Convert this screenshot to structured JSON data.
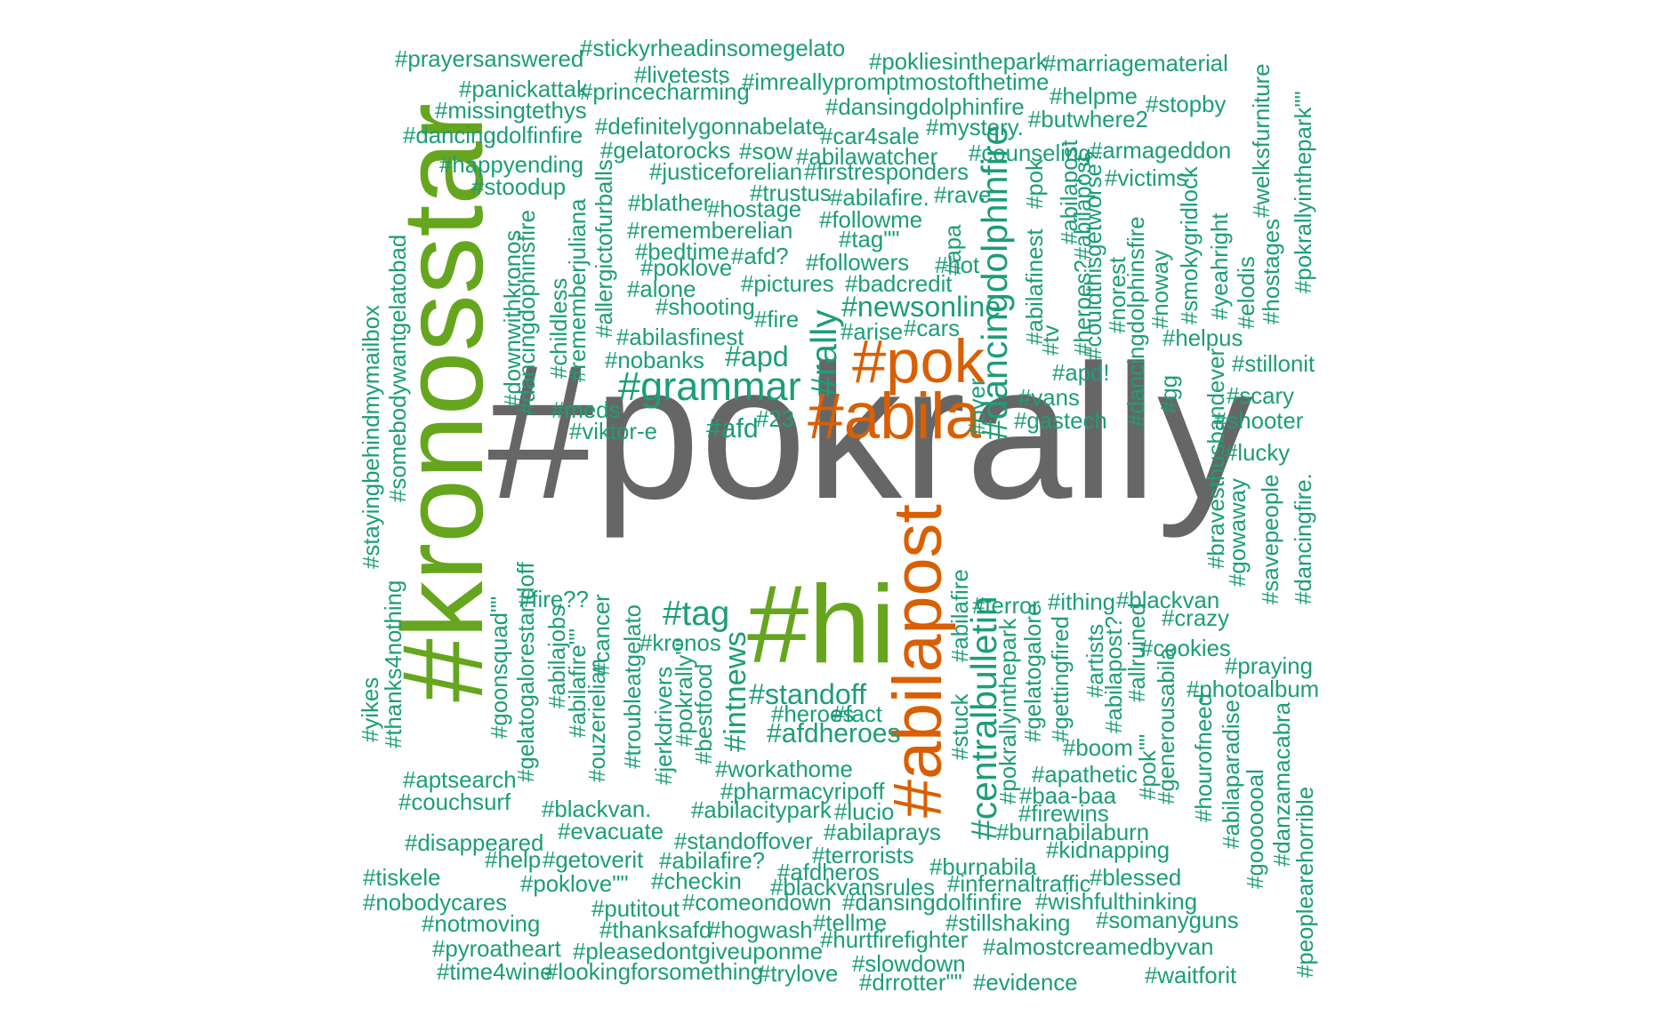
{
  "chart_data": {
    "type": "wordcloud",
    "palette": {
      "grey": "#666666",
      "green": "#66a61e",
      "orange": "#d95f02",
      "teal": "#1b9e77"
    },
    "words": [
      {
        "text": "#pokrally",
        "weight": 100,
        "color": "grey"
      },
      {
        "text": "#kronosstar",
        "weight": 60,
        "color": "green"
      },
      {
        "text": "#hi",
        "weight": 58,
        "color": "green"
      },
      {
        "text": "#abilapost",
        "weight": 36,
        "color": "orange"
      },
      {
        "text": "#abila",
        "weight": 34,
        "color": "orange"
      },
      {
        "text": "#pok",
        "weight": 32,
        "color": "orange"
      },
      {
        "text": "#grammar",
        "weight": 21,
        "color": "teal"
      },
      {
        "text": "#dancingdolphinfire",
        "weight": 19,
        "color": "teal"
      },
      {
        "text": "#centralbulletin",
        "weight": 19,
        "color": "teal"
      },
      {
        "text": "#rally",
        "weight": 19,
        "color": "teal"
      },
      {
        "text": "#tag",
        "weight": 18,
        "color": "teal"
      },
      {
        "text": "#intnews",
        "weight": 16,
        "color": "teal"
      },
      {
        "text": "#standoff",
        "weight": 15,
        "color": "teal"
      },
      {
        "text": "#newsonline",
        "weight": 15,
        "color": "teal"
      },
      {
        "text": "#apd",
        "weight": 15,
        "color": "teal"
      },
      {
        "text": "#afdheroes",
        "weight": 14,
        "color": "teal"
      },
      {
        "text": "#afd",
        "weight": 14,
        "color": "teal"
      },
      {
        "text": "#prayersanswered",
        "weight": 12,
        "color": "teal"
      },
      {
        "text": "#stickyrheadinsomegelato",
        "weight": 12,
        "color": "teal"
      },
      {
        "text": "#pokliesinthepark",
        "weight": 12,
        "color": "teal"
      },
      {
        "text": "#marriagematerial",
        "weight": 12,
        "color": "teal"
      },
      {
        "text": "#livetests",
        "weight": 12,
        "color": "teal"
      },
      {
        "text": "#panickattak",
        "weight": 12,
        "color": "teal"
      },
      {
        "text": "#princecharming",
        "weight": 12,
        "color": "teal"
      },
      {
        "text": "#imreallypromptmostofthetime",
        "weight": 12,
        "color": "teal"
      },
      {
        "text": "#helpme",
        "weight": 12,
        "color": "teal"
      },
      {
        "text": "#missingtethys",
        "weight": 12,
        "color": "teal"
      },
      {
        "text": "#dansingdolphinfire",
        "weight": 12,
        "color": "teal"
      },
      {
        "text": "#stopby",
        "weight": 12,
        "color": "teal"
      },
      {
        "text": "#butwhere2",
        "weight": 12,
        "color": "teal"
      },
      {
        "text": "#definitelygonnabelate",
        "weight": 12,
        "color": "teal"
      },
      {
        "text": "#mystery.",
        "weight": 12,
        "color": "teal"
      },
      {
        "text": "#dancingdolfinfire",
        "weight": 12,
        "color": "teal"
      },
      {
        "text": "#car4sale",
        "weight": 12,
        "color": "teal"
      },
      {
        "text": "#gelatorocks",
        "weight": 12,
        "color": "teal"
      },
      {
        "text": "#sow",
        "weight": 12,
        "color": "teal"
      },
      {
        "text": "#abilawatcher",
        "weight": 12,
        "color": "teal"
      },
      {
        "text": "#counseling",
        "weight": 12,
        "color": "teal"
      },
      {
        "text": "#armageddon",
        "weight": 12,
        "color": "teal"
      },
      {
        "text": "#happyending",
        "weight": 12,
        "color": "teal"
      },
      {
        "text": "#justiceforelian",
        "weight": 12,
        "color": "teal"
      },
      {
        "text": "#firstresponders",
        "weight": 12,
        "color": "teal"
      },
      {
        "text": "#victims",
        "weight": 12,
        "color": "teal"
      },
      {
        "text": "#stoodup",
        "weight": 12,
        "color": "teal"
      },
      {
        "text": "#trustus",
        "weight": 12,
        "color": "teal"
      },
      {
        "text": "#abilafire.",
        "weight": 12,
        "color": "teal"
      },
      {
        "text": "#rave",
        "weight": 12,
        "color": "teal"
      },
      {
        "text": "#blather",
        "weight": 12,
        "color": "teal"
      },
      {
        "text": "#hostage",
        "weight": 12,
        "color": "teal"
      },
      {
        "text": "#followme",
        "weight": 12,
        "color": "teal"
      },
      {
        "text": "#rememberelian",
        "weight": 12,
        "color": "teal"
      },
      {
        "text": "#tag\"\"",
        "weight": 12,
        "color": "teal"
      },
      {
        "text": "#bedtime",
        "weight": 12,
        "color": "teal"
      },
      {
        "text": "#afd?",
        "weight": 12,
        "color": "teal"
      },
      {
        "text": "#poklove",
        "weight": 12,
        "color": "teal"
      },
      {
        "text": "#followers",
        "weight": 12,
        "color": "teal"
      },
      {
        "text": "#hot",
        "weight": 12,
        "color": "teal"
      },
      {
        "text": "#alone",
        "weight": 12,
        "color": "teal"
      },
      {
        "text": "#pictures",
        "weight": 12,
        "color": "teal"
      },
      {
        "text": "#badcredit",
        "weight": 12,
        "color": "teal"
      },
      {
        "text": "#shooting",
        "weight": 12,
        "color": "teal"
      },
      {
        "text": "#fire",
        "weight": 12,
        "color": "teal"
      },
      {
        "text": "#arise",
        "weight": 12,
        "color": "teal"
      },
      {
        "text": "#cars",
        "weight": 12,
        "color": "teal"
      },
      {
        "text": "#abilasfinest",
        "weight": 12,
        "color": "teal"
      },
      {
        "text": "#nobanks",
        "weight": 12,
        "color": "teal"
      },
      {
        "text": "#helpus",
        "weight": 12,
        "color": "teal"
      },
      {
        "text": "#stillonit",
        "weight": 12,
        "color": "teal"
      },
      {
        "text": "#apd!",
        "weight": 12,
        "color": "teal"
      },
      {
        "text": "#meds",
        "weight": 12,
        "color": "teal"
      },
      {
        "text": "#vans",
        "weight": 12,
        "color": "teal"
      },
      {
        "text": "#scary",
        "weight": 12,
        "color": "teal"
      },
      {
        "text": "#23",
        "weight": 12,
        "color": "teal"
      },
      {
        "text": "#viktor-e",
        "weight": 12,
        "color": "teal"
      },
      {
        "text": "#gastech",
        "weight": 12,
        "color": "teal"
      },
      {
        "text": "#shooter",
        "weight": 12,
        "color": "teal"
      },
      {
        "text": "#lucky",
        "weight": 12,
        "color": "teal"
      },
      {
        "text": "#fire??",
        "weight": 12,
        "color": "teal"
      },
      {
        "text": "#terror",
        "weight": 12,
        "color": "teal"
      },
      {
        "text": "#ithing",
        "weight": 12,
        "color": "teal"
      },
      {
        "text": "#blackvan",
        "weight": 12,
        "color": "teal"
      },
      {
        "text": "#crazy",
        "weight": 12,
        "color": "teal"
      },
      {
        "text": "#kronos",
        "weight": 12,
        "color": "teal"
      },
      {
        "text": "#cookies",
        "weight": 12,
        "color": "teal"
      },
      {
        "text": "#praying",
        "weight": 12,
        "color": "teal"
      },
      {
        "text": "#photoalbum",
        "weight": 12,
        "color": "teal"
      },
      {
        "text": "#heroes",
        "weight": 12,
        "color": "teal"
      },
      {
        "text": "#fact",
        "weight": 12,
        "color": "teal"
      },
      {
        "text": "#boom",
        "weight": 12,
        "color": "teal"
      },
      {
        "text": "#workathome",
        "weight": 12,
        "color": "teal"
      },
      {
        "text": "#apathetic",
        "weight": 12,
        "color": "teal"
      },
      {
        "text": "#aptsearch",
        "weight": 12,
        "color": "teal"
      },
      {
        "text": "#pharmacyripoff",
        "weight": 12,
        "color": "teal"
      },
      {
        "text": "#baa-baa",
        "weight": 12,
        "color": "teal"
      },
      {
        "text": "#couchsurf",
        "weight": 12,
        "color": "teal"
      },
      {
        "text": "#blackvan.",
        "weight": 12,
        "color": "teal"
      },
      {
        "text": "#abilacitypark",
        "weight": 12,
        "color": "teal"
      },
      {
        "text": "#lucio",
        "weight": 12,
        "color": "teal"
      },
      {
        "text": "#firewins",
        "weight": 12,
        "color": "teal"
      },
      {
        "text": "#evacuate",
        "weight": 12,
        "color": "teal"
      },
      {
        "text": "#abilaprays",
        "weight": 12,
        "color": "teal"
      },
      {
        "text": "#burnabilaburn",
        "weight": 12,
        "color": "teal"
      },
      {
        "text": "#disappeared",
        "weight": 12,
        "color": "teal"
      },
      {
        "text": "#standoffover",
        "weight": 12,
        "color": "teal"
      },
      {
        "text": "#kidnapping",
        "weight": 12,
        "color": "teal"
      },
      {
        "text": "#help",
        "weight": 12,
        "color": "teal"
      },
      {
        "text": "#getoverit",
        "weight": 12,
        "color": "teal"
      },
      {
        "text": "#abilafire?",
        "weight": 12,
        "color": "teal"
      },
      {
        "text": "#terrorists",
        "weight": 12,
        "color": "teal"
      },
      {
        "text": "#burnabila",
        "weight": 12,
        "color": "teal"
      },
      {
        "text": "#tiskele",
        "weight": 12,
        "color": "teal"
      },
      {
        "text": "#afdheros",
        "weight": 12,
        "color": "teal"
      },
      {
        "text": "#blessed",
        "weight": 12,
        "color": "teal"
      },
      {
        "text": "#checkin",
        "weight": 12,
        "color": "teal"
      },
      {
        "text": "#poklove\"\"",
        "weight": 12,
        "color": "teal"
      },
      {
        "text": "#infernaltraffic",
        "weight": 12,
        "color": "teal"
      },
      {
        "text": "#blackvansrules",
        "weight": 12,
        "color": "teal"
      },
      {
        "text": "#nobodycares",
        "weight": 12,
        "color": "teal"
      },
      {
        "text": "#comeondown",
        "weight": 12,
        "color": "teal"
      },
      {
        "text": "#dansingdolfinfire",
        "weight": 12,
        "color": "teal"
      },
      {
        "text": "#wishfulthinking",
        "weight": 12,
        "color": "teal"
      },
      {
        "text": "#putitout",
        "weight": 12,
        "color": "teal"
      },
      {
        "text": "#notmoving",
        "weight": 12,
        "color": "teal"
      },
      {
        "text": "#tellme",
        "weight": 12,
        "color": "teal"
      },
      {
        "text": "#stillshaking",
        "weight": 12,
        "color": "teal"
      },
      {
        "text": "#somanyguns",
        "weight": 12,
        "color": "teal"
      },
      {
        "text": "#thanksafd",
        "weight": 12,
        "color": "teal"
      },
      {
        "text": "#hogwash",
        "weight": 12,
        "color": "teal"
      },
      {
        "text": "#hurtfirefighter",
        "weight": 12,
        "color": "teal"
      },
      {
        "text": "#pyroatheart",
        "weight": 12,
        "color": "teal"
      },
      {
        "text": "#pleasedontgiveuponme",
        "weight": 12,
        "color": "teal"
      },
      {
        "text": "#almostcreamedbyvan",
        "weight": 12,
        "color": "teal"
      },
      {
        "text": "#slowdown",
        "weight": 12,
        "color": "teal"
      },
      {
        "text": "#time4wine",
        "weight": 12,
        "color": "teal"
      },
      {
        "text": "#lookingforsomething",
        "weight": 12,
        "color": "teal"
      },
      {
        "text": "#trylove",
        "weight": 12,
        "color": "teal"
      },
      {
        "text": "#waitforit",
        "weight": 12,
        "color": "teal"
      },
      {
        "text": "#drrotter\"\"",
        "weight": 12,
        "color": "teal"
      },
      {
        "text": "#evidence",
        "weight": 12,
        "color": "teal"
      },
      {
        "text": "#stayingbehindmymailbox",
        "weight": 12,
        "color": "teal"
      },
      {
        "text": "#somebodywantgelatobad",
        "weight": 12,
        "color": "teal"
      },
      {
        "text": "#downwithkronos",
        "weight": 12,
        "color": "teal"
      },
      {
        "text": "#dancingdophinsfire",
        "weight": 12,
        "color": "teal"
      },
      {
        "text": "#childless",
        "weight": 12,
        "color": "teal"
      },
      {
        "text": "#rememberjuliana",
        "weight": 12,
        "color": "teal"
      },
      {
        "text": "#allergictofurballs",
        "weight": 12,
        "color": "teal"
      },
      {
        "text": "#apa",
        "weight": 12,
        "color": "teal"
      },
      {
        "text": "#abilafinest",
        "weight": 12,
        "color": "teal"
      },
      {
        "text": "#pok",
        "weight": 12,
        "color": "teal"
      },
      {
        "text": "#tv",
        "weight": 12,
        "color": "teal"
      },
      {
        "text": "#abilapost",
        "weight": 12,
        "color": "teal"
      },
      {
        "text": "#heroes?#abilapost",
        "weight": 12,
        "color": "teal"
      },
      {
        "text": "#couldthisgetworse?",
        "weight": 12,
        "color": "teal"
      },
      {
        "text": "#norest",
        "weight": 12,
        "color": "teal"
      },
      {
        "text": "#dancingdolphinsfire",
        "weight": 12,
        "color": "teal"
      },
      {
        "text": "#noway",
        "weight": 12,
        "color": "teal"
      },
      {
        "text": "#smokygridlock",
        "weight": 12,
        "color": "teal"
      },
      {
        "text": "#yeahright",
        "weight": 12,
        "color": "teal"
      },
      {
        "text": "#elodis",
        "weight": 12,
        "color": "teal"
      },
      {
        "text": "#welksfurniture",
        "weight": 12,
        "color": "teal"
      },
      {
        "text": "#hostages",
        "weight": 12,
        "color": "teal"
      },
      {
        "text": "#pokrallyinthepark\"\"",
        "weight": 12,
        "color": "teal"
      },
      {
        "text": "#gg",
        "weight": 12,
        "color": "teal"
      },
      {
        "text": "#bravesthusbandever",
        "weight": 12,
        "color": "teal"
      },
      {
        "text": "#gowaway",
        "weight": 12,
        "color": "teal"
      },
      {
        "text": "#savepeople",
        "weight": 12,
        "color": "teal"
      },
      {
        "text": "#dancingfire.",
        "weight": 12,
        "color": "teal"
      },
      {
        "text": "#over",
        "weight": 12,
        "color": "teal"
      },
      {
        "text": "#yikes",
        "weight": 12,
        "color": "teal"
      },
      {
        "text": "#thanks4nothing",
        "weight": 12,
        "color": "teal"
      },
      {
        "text": "#goonsquad\"\"",
        "weight": 12,
        "color": "teal"
      },
      {
        "text": "#gelatogalorestandoff",
        "weight": 12,
        "color": "teal"
      },
      {
        "text": "#abilajobs",
        "weight": 12,
        "color": "teal"
      },
      {
        "text": "#abilafire\"\"",
        "weight": 12,
        "color": "teal"
      },
      {
        "text": "#cancer",
        "weight": 12,
        "color": "teal"
      },
      {
        "text": "#ouzerielian",
        "weight": 12,
        "color": "teal"
      },
      {
        "text": "#troubleatgelato",
        "weight": 12,
        "color": "teal"
      },
      {
        "text": "#jerkdrivers",
        "weight": 12,
        "color": "teal"
      },
      {
        "text": "#pokrally\"\"",
        "weight": 12,
        "color": "teal"
      },
      {
        "text": "#bestfood",
        "weight": 12,
        "color": "teal"
      },
      {
        "text": "#stuck",
        "weight": 12,
        "color": "teal"
      },
      {
        "text": "#abilafire",
        "weight": 12,
        "color": "teal"
      },
      {
        "text": "#pokrallyinthepark",
        "weight": 12,
        "color": "teal"
      },
      {
        "text": "#gelatogalore",
        "weight": 12,
        "color": "teal"
      },
      {
        "text": "#gettingfired",
        "weight": 12,
        "color": "teal"
      },
      {
        "text": "#artists",
        "weight": 12,
        "color": "teal"
      },
      {
        "text": "#abilapost?",
        "weight": 12,
        "color": "teal"
      },
      {
        "text": "#allruined",
        "weight": 12,
        "color": "teal"
      },
      {
        "text": "#pok\"\"",
        "weight": 12,
        "color": "teal"
      },
      {
        "text": "#generousabila",
        "weight": 12,
        "color": "teal"
      },
      {
        "text": "#hourofneed",
        "weight": 12,
        "color": "teal"
      },
      {
        "text": "#abilaparadise",
        "weight": 12,
        "color": "teal"
      },
      {
        "text": "#gooooooal",
        "weight": 12,
        "color": "teal"
      },
      {
        "text": "#danzamacabra",
        "weight": 12,
        "color": "teal"
      },
      {
        "text": "#peoplearehorrible",
        "weight": 12,
        "color": "teal"
      }
    ]
  }
}
